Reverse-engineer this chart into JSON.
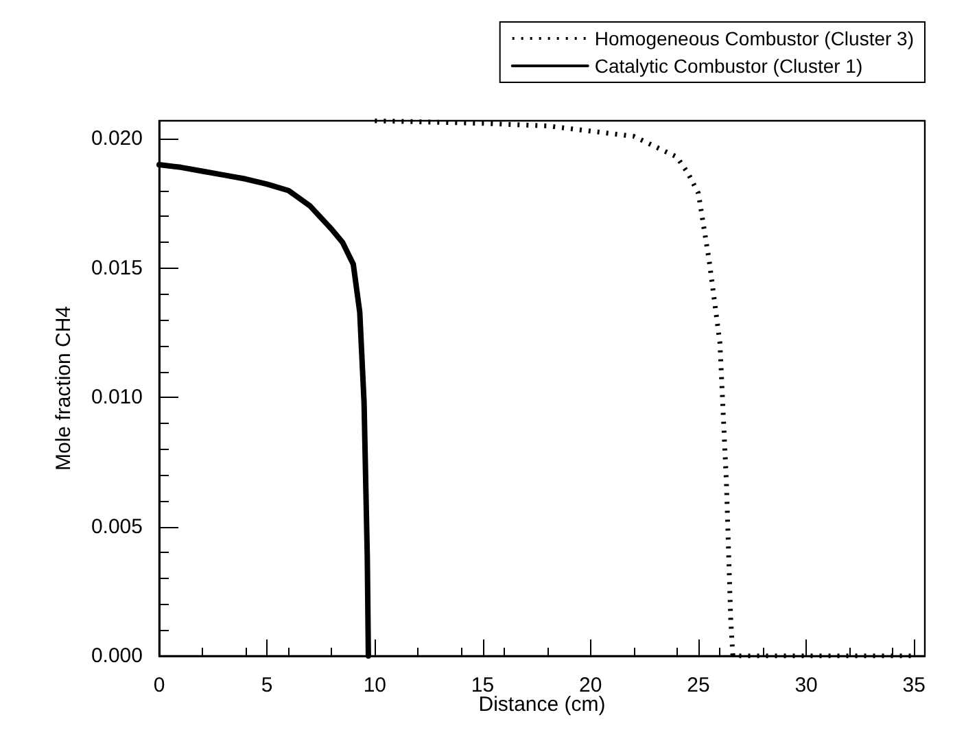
{
  "chart_data": {
    "type": "line",
    "xlabel": "Distance (cm)",
    "ylabel": "Mole fraction CH4",
    "xlim": [
      0,
      35.5
    ],
    "xticks": [
      0,
      5,
      10,
      15,
      20,
      25,
      30,
      35
    ],
    "ylim": [
      0,
      0.0207
    ],
    "yticks": [
      {
        "value": 0,
        "label": "0.000"
      },
      {
        "value": 0.005,
        "label": "0.005"
      },
      {
        "value": 0.01,
        "label": "0.010"
      },
      {
        "value": 0.015,
        "label": "0.015"
      },
      {
        "value": 0.02,
        "label": "0.020"
      }
    ],
    "grid": false,
    "legend": "top right",
    "marker": "none",
    "series": [
      {
        "name": "Homogeneous Combustor (Cluster 3)",
        "color": "#000000",
        "line_style": "dotted",
        "x": [
          10,
          15,
          18,
          20,
          22,
          23,
          24,
          24.5,
          25,
          25.5,
          26,
          26.3,
          26.5,
          26.6,
          30,
          35
        ],
        "values": [
          0.0207,
          0.0206,
          0.0205,
          0.0203,
          0.0201,
          0.0197,
          0.0193,
          0.0187,
          0.0179,
          0.0153,
          0.0121,
          0.0067,
          0.0014,
          0,
          0,
          0
        ]
      },
      {
        "name": "Catalytic Combustor (Cluster 1)",
        "color": "#000000",
        "line_style": "solid",
        "x": [
          0,
          1,
          2,
          3,
          4,
          5,
          6,
          7,
          8,
          8.5,
          9,
          9.3,
          9.5,
          9.65,
          9.7
        ],
        "values": [
          0.019,
          0.0189,
          0.01875,
          0.0186,
          0.01845,
          0.01825,
          0.018,
          0.0174,
          0.0165,
          0.016,
          0.01515,
          0.0133,
          0.0098,
          0.0038,
          0
        ]
      }
    ]
  }
}
